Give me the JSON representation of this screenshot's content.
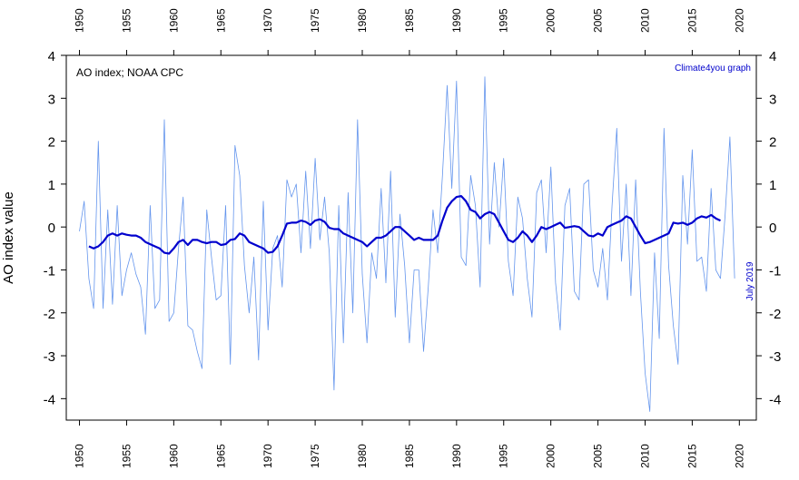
{
  "chart_data": {
    "type": "line",
    "title": "AO index; NOAA CPC",
    "credit": "Climate4you graph",
    "date_label": "July 2019",
    "ylabel": "AO index value",
    "xlabel": "",
    "xlim": [
      1950,
      2020
    ],
    "ylim": [
      -4.5,
      4
    ],
    "x_ticks": [
      "1950",
      "1955",
      "1960",
      "1965",
      "1970",
      "1975",
      "1980",
      "1985",
      "1990",
      "1995",
      "2000",
      "2005",
      "2010",
      "2015",
      "2020"
    ],
    "y_ticks": [
      "4",
      "3",
      "2",
      "1",
      "0",
      "-1",
      "-2",
      "-3",
      "-4"
    ],
    "grid": false,
    "colors": {
      "monthly": "#6495ed",
      "running_mean": "#0000cd",
      "credit": "#0000cc",
      "axis": "#000000"
    },
    "series": [
      {
        "role": "monthly",
        "style": "thin-line",
        "step": 0.0833,
        "x": [
          1950.0,
          1950.5,
          1951.0,
          1951.5,
          1952.0,
          1952.5,
          1953.0,
          1953.5,
          1954.0,
          1954.5,
          1955.0,
          1955.5,
          1956.0,
          1956.5,
          1957.0,
          1957.5,
          1958.0,
          1958.5,
          1959.0,
          1959.5,
          1960.0,
          1960.5,
          1961.0,
          1961.5,
          1962.0,
          1962.5,
          1963.0,
          1963.5,
          1964.0,
          1964.5,
          1965.0,
          1965.5,
          1966.0,
          1966.5,
          1967.0,
          1967.5,
          1968.0,
          1968.5,
          1969.0,
          1969.5,
          1970.0,
          1970.5,
          1971.0,
          1971.5,
          1972.0,
          1972.5,
          1973.0,
          1973.5,
          1974.0,
          1974.5,
          1975.0,
          1975.5,
          1976.0,
          1976.5,
          1977.0,
          1977.5,
          1978.0,
          1978.5,
          1979.0,
          1979.5,
          1980.0,
          1980.5,
          1981.0,
          1981.5,
          1982.0,
          1982.5,
          1983.0,
          1983.5,
          1984.0,
          1984.5,
          1985.0,
          1985.5,
          1986.0,
          1986.5,
          1987.0,
          1987.5,
          1988.0,
          1988.5,
          1989.0,
          1989.5,
          1990.0,
          1990.5,
          1991.0,
          1991.5,
          1992.0,
          1992.5,
          1993.0,
          1993.5,
          1994.0,
          1994.5,
          1995.0,
          1995.5,
          1996.0,
          1996.5,
          1997.0,
          1997.5,
          1998.0,
          1998.5,
          1999.0,
          1999.5,
          2000.0,
          2000.5,
          2001.0,
          2001.5,
          2002.0,
          2002.5,
          2003.0,
          2003.5,
          2004.0,
          2004.5,
          2005.0,
          2005.5,
          2006.0,
          2006.5,
          2007.0,
          2007.5,
          2008.0,
          2008.5,
          2009.0,
          2009.5,
          2010.0,
          2010.5,
          2011.0,
          2011.5,
          2012.0,
          2012.5,
          2013.0,
          2013.5,
          2014.0,
          2014.5,
          2015.0,
          2015.5,
          2016.0,
          2016.5,
          2017.0,
          2017.5,
          2018.0,
          2018.5,
          2019.0,
          2019.5
        ],
        "values": [
          -0.1,
          0.6,
          -1.2,
          -1.9,
          2.0,
          -1.9,
          0.4,
          -1.8,
          0.5,
          -1.6,
          -1.0,
          -0.6,
          -1.1,
          -1.4,
          -2.5,
          0.5,
          -1.9,
          -1.7,
          2.5,
          -2.2,
          -2.0,
          -0.5,
          0.7,
          -2.3,
          -2.4,
          -2.9,
          -3.3,
          0.4,
          -0.7,
          -1.7,
          -1.6,
          0.5,
          -3.2,
          1.9,
          1.2,
          -0.9,
          -2.0,
          -0.7,
          -3.1,
          0.6,
          -2.4,
          -0.5,
          -0.2,
          -1.4,
          1.1,
          0.7,
          1.0,
          -0.6,
          1.3,
          -0.5,
          1.6,
          -0.3,
          0.7,
          -0.6,
          -3.8,
          0.5,
          -2.7,
          0.8,
          -2.0,
          2.5,
          -1.1,
          -2.7,
          -0.6,
          -1.2,
          0.9,
          -1.3,
          1.3,
          -2.1,
          0.3,
          -0.9,
          -2.7,
          -1.0,
          -1.0,
          -2.9,
          -1.4,
          0.4,
          -0.6,
          1.2,
          3.3,
          0.9,
          3.4,
          -0.7,
          -0.9,
          1.2,
          0.5,
          -1.4,
          3.5,
          -0.4,
          1.5,
          0.0,
          1.6,
          -0.8,
          -1.6,
          0.7,
          0.2,
          -1.2,
          -2.1,
          0.8,
          1.1,
          -0.6,
          1.4,
          -1.3,
          -2.4,
          0.5,
          0.9,
          -1.5,
          -1.7,
          1.0,
          1.1,
          -1.0,
          -1.4,
          -0.5,
          -1.7,
          0.5,
          2.3,
          -0.8,
          1.0,
          -1.6,
          1.1,
          -1.5,
          -3.4,
          -4.3,
          -0.6,
          -2.6,
          2.3,
          -0.9,
          -2.3,
          -3.2,
          1.2,
          -0.4,
          1.8,
          -0.8,
          -0.7,
          -1.5,
          0.9,
          -1.0,
          -1.2,
          0.3,
          2.1,
          -1.2
        ]
      },
      {
        "role": "running-mean",
        "style": "thick-line",
        "x": [
          1951.0,
          1951.5,
          1952.0,
          1952.5,
          1953.0,
          1953.5,
          1954.0,
          1954.5,
          1955.0,
          1955.5,
          1956.0,
          1956.5,
          1957.0,
          1957.5,
          1958.0,
          1958.5,
          1959.0,
          1959.5,
          1960.0,
          1960.5,
          1961.0,
          1961.5,
          1962.0,
          1962.5,
          1963.0,
          1963.5,
          1964.0,
          1964.5,
          1965.0,
          1965.5,
          1966.0,
          1966.5,
          1967.0,
          1967.5,
          1968.0,
          1968.5,
          1969.0,
          1969.5,
          1970.0,
          1970.5,
          1971.0,
          1971.5,
          1972.0,
          1972.5,
          1973.0,
          1973.5,
          1974.0,
          1974.5,
          1975.0,
          1975.5,
          1976.0,
          1976.5,
          1977.0,
          1977.5,
          1978.0,
          1978.5,
          1979.0,
          1979.5,
          1980.0,
          1980.5,
          1981.0,
          1981.5,
          1982.0,
          1982.5,
          1983.0,
          1983.5,
          1984.0,
          1984.5,
          1985.0,
          1985.5,
          1986.0,
          1986.5,
          1987.0,
          1987.5,
          1988.0,
          1988.5,
          1989.0,
          1989.5,
          1990.0,
          1990.5,
          1991.0,
          1991.5,
          1992.0,
          1992.5,
          1993.0,
          1993.5,
          1994.0,
          1994.5,
          1995.0,
          1995.5,
          1996.0,
          1996.5,
          1997.0,
          1997.5,
          1998.0,
          1998.5,
          1999.0,
          1999.5,
          2000.0,
          2000.5,
          2001.0,
          2001.5,
          2002.0,
          2002.5,
          2003.0,
          2003.5,
          2004.0,
          2004.5,
          2005.0,
          2005.5,
          2006.0,
          2006.5,
          2007.0,
          2007.5,
          2008.0,
          2008.5,
          2009.0,
          2009.5,
          2010.0,
          2010.5,
          2011.0,
          2011.5,
          2012.0,
          2012.5,
          2013.0,
          2013.5,
          2014.0,
          2014.5,
          2015.0,
          2015.5,
          2016.0,
          2016.5,
          2017.0,
          2017.5,
          2018.0
        ],
        "values": [
          -0.45,
          -0.5,
          -0.45,
          -0.35,
          -0.2,
          -0.15,
          -0.2,
          -0.15,
          -0.18,
          -0.2,
          -0.2,
          -0.25,
          -0.35,
          -0.4,
          -0.45,
          -0.5,
          -0.6,
          -0.62,
          -0.5,
          -0.35,
          -0.3,
          -0.42,
          -0.3,
          -0.3,
          -0.35,
          -0.38,
          -0.35,
          -0.35,
          -0.42,
          -0.4,
          -0.3,
          -0.28,
          -0.15,
          -0.2,
          -0.35,
          -0.4,
          -0.45,
          -0.5,
          -0.6,
          -0.58,
          -0.45,
          -0.2,
          0.08,
          0.1,
          0.1,
          0.15,
          0.12,
          0.05,
          0.15,
          0.18,
          0.12,
          -0.02,
          -0.05,
          -0.05,
          -0.15,
          -0.2,
          -0.25,
          -0.3,
          -0.35,
          -0.45,
          -0.35,
          -0.25,
          -0.25,
          -0.2,
          -0.1,
          0.0,
          0.0,
          -0.1,
          -0.2,
          -0.3,
          -0.25,
          -0.3,
          -0.3,
          -0.3,
          -0.2,
          0.15,
          0.45,
          0.6,
          0.7,
          0.72,
          0.6,
          0.4,
          0.35,
          0.2,
          0.3,
          0.35,
          0.3,
          0.1,
          -0.1,
          -0.3,
          -0.35,
          -0.25,
          -0.1,
          -0.2,
          -0.35,
          -0.2,
          0.0,
          -0.05,
          0.0,
          0.05,
          0.1,
          -0.02,
          0.0,
          0.02,
          0.0,
          -0.1,
          -0.2,
          -0.22,
          -0.15,
          -0.2,
          0.0,
          0.05,
          0.1,
          0.15,
          0.25,
          0.2,
          0.0,
          -0.2,
          -0.38,
          -0.35,
          -0.3,
          -0.25,
          -0.2,
          -0.15,
          0.1,
          0.08,
          0.1,
          0.05,
          0.1,
          0.2,
          0.25,
          0.22,
          0.28,
          0.2,
          0.15
        ]
      }
    ]
  }
}
